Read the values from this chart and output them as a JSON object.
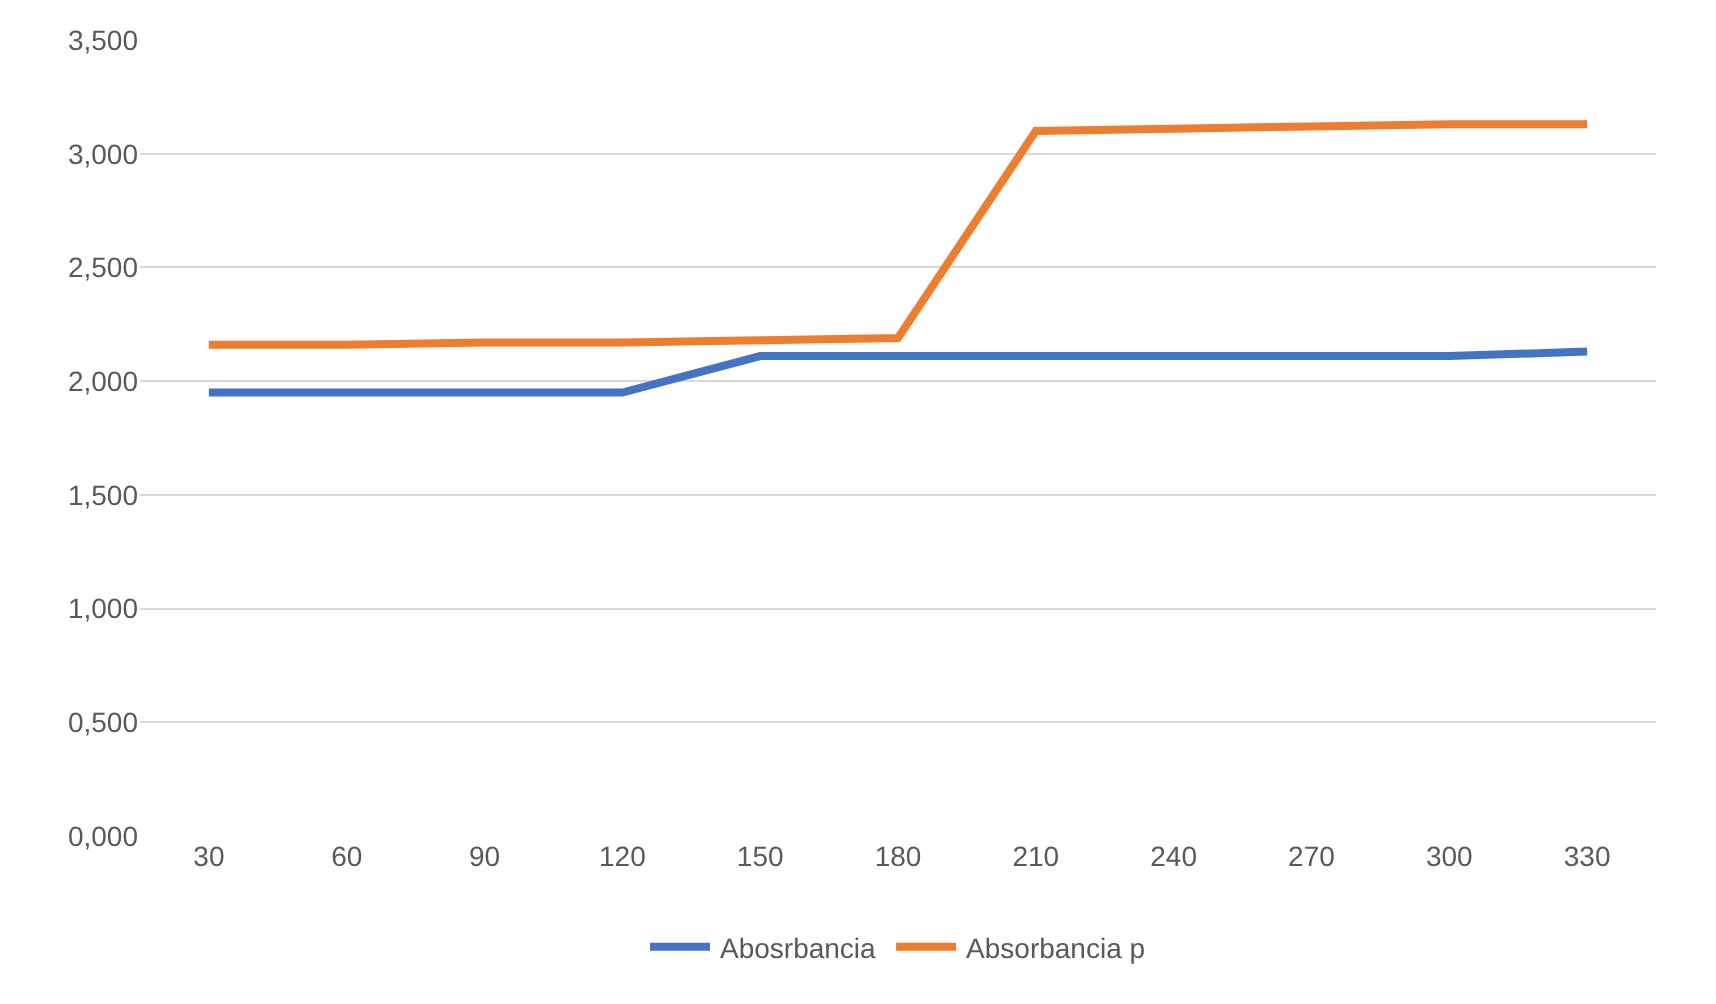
{
  "chart_data": {
    "type": "line",
    "categories": [
      "30",
      "60",
      "90",
      "120",
      "150",
      "180",
      "210",
      "240",
      "270",
      "300",
      "330"
    ],
    "series": [
      {
        "name": "Abosrbancia",
        "color": "#4472c4",
        "values": [
          1.95,
          1.95,
          1.95,
          1.95,
          2.11,
          2.11,
          2.11,
          2.11,
          2.11,
          2.11,
          2.13
        ]
      },
      {
        "name": "Absorbancia p",
        "color": "#ed7d31",
        "values": [
          2.16,
          2.16,
          2.17,
          2.17,
          2.18,
          2.19,
          3.1,
          3.11,
          3.12,
          3.13,
          3.13
        ]
      }
    ],
    "ylim": [
      0,
      3.5
    ],
    "yticks": [
      {
        "value": 0,
        "label": "0,000"
      },
      {
        "value": 0.5,
        "label": "0,500"
      },
      {
        "value": 1,
        "label": "1,000"
      },
      {
        "value": 1.5,
        "label": "1,500"
      },
      {
        "value": 2,
        "label": "2,000"
      },
      {
        "value": 2.5,
        "label": "2,500"
      },
      {
        "value": 3,
        "label": "3,000"
      },
      {
        "value": 3.5,
        "label": "3,500"
      }
    ],
    "grid": "y",
    "legend": "bottom",
    "marker": "none",
    "line_style": "solid"
  }
}
